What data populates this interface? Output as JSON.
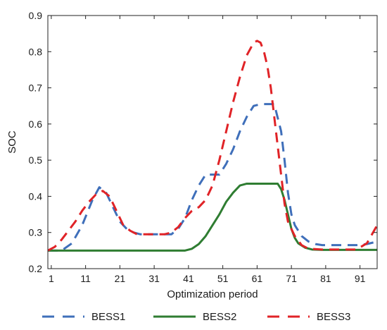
{
  "chart_data": {
    "type": "line",
    "title": "",
    "xlabel": "Optimization period",
    "ylabel": "SOC",
    "xlim": [
      0,
      96
    ],
    "ylim": [
      0.2,
      0.9
    ],
    "xticks": [
      1,
      11,
      21,
      31,
      41,
      51,
      61,
      71,
      81,
      91
    ],
    "yticks": [
      0.2,
      0.3,
      0.4,
      0.5,
      0.6,
      0.7,
      0.8,
      0.9
    ],
    "ytick_labels": [
      "0.2",
      "0.3",
      "0.4",
      "0.5",
      "0.6",
      "0.7",
      "0.8",
      "0.9"
    ],
    "grid": false,
    "legend_position": "bottom",
    "series": [
      {
        "name": "BESS1",
        "color": "#3f6fba",
        "style": "dashed",
        "x": [
          0,
          4,
          7,
          10,
          13,
          15,
          17,
          19,
          21,
          23,
          25,
          27,
          30,
          33,
          36,
          38,
          40,
          42,
          44,
          46,
          48,
          50,
          52,
          54,
          56,
          58,
          60,
          62,
          64,
          66,
          68,
          69,
          70,
          71,
          72,
          74,
          76,
          78,
          80,
          85,
          90,
          93,
          96
        ],
        "y": [
          0.25,
          0.25,
          0.27,
          0.32,
          0.39,
          0.425,
          0.41,
          0.37,
          0.33,
          0.31,
          0.3,
          0.295,
          0.295,
          0.295,
          0.295,
          0.31,
          0.34,
          0.39,
          0.43,
          0.46,
          0.46,
          0.46,
          0.49,
          0.53,
          0.58,
          0.62,
          0.65,
          0.655,
          0.655,
          0.655,
          0.58,
          0.5,
          0.41,
          0.35,
          0.32,
          0.29,
          0.275,
          0.268,
          0.265,
          0.265,
          0.265,
          0.268,
          0.275
        ]
      },
      {
        "name": "BESS2",
        "color": "#2f7d32",
        "style": "solid",
        "x": [
          0,
          10,
          20,
          30,
          38,
          40,
          42,
          44,
          46,
          48,
          50,
          52,
          54,
          56,
          58,
          60,
          62,
          64,
          66,
          67,
          68,
          69,
          70,
          71,
          72,
          73,
          75,
          77,
          80,
          85,
          90,
          96
        ],
        "y": [
          0.25,
          0.25,
          0.25,
          0.25,
          0.25,
          0.25,
          0.255,
          0.268,
          0.29,
          0.32,
          0.35,
          0.385,
          0.41,
          0.43,
          0.435,
          0.435,
          0.435,
          0.435,
          0.435,
          0.435,
          0.42,
          0.39,
          0.35,
          0.31,
          0.285,
          0.27,
          0.258,
          0.253,
          0.252,
          0.252,
          0.252,
          0.252
        ]
      },
      {
        "name": "BESS3",
        "color": "#e02327",
        "style": "dashed",
        "x": [
          0,
          2,
          4,
          6,
          8,
          10,
          12,
          14,
          16,
          18,
          20,
          22,
          24,
          26,
          30,
          34,
          36,
          38,
          40,
          42,
          44,
          46,
          48,
          50,
          52,
          54,
          56,
          58,
          60,
          61,
          62,
          63,
          64,
          65,
          66,
          67,
          68,
          69,
          70,
          72,
          74,
          76,
          80,
          85,
          90,
          93,
          96
        ],
        "y": [
          0.25,
          0.26,
          0.28,
          0.305,
          0.33,
          0.36,
          0.385,
          0.405,
          0.415,
          0.4,
          0.36,
          0.32,
          0.305,
          0.295,
          0.295,
          0.295,
          0.3,
          0.315,
          0.34,
          0.36,
          0.37,
          0.39,
          0.43,
          0.5,
          0.58,
          0.66,
          0.73,
          0.79,
          0.825,
          0.83,
          0.825,
          0.8,
          0.76,
          0.7,
          0.62,
          0.54,
          0.46,
          0.38,
          0.33,
          0.29,
          0.265,
          0.255,
          0.253,
          0.253,
          0.253,
          0.27,
          0.32
        ]
      }
    ]
  }
}
